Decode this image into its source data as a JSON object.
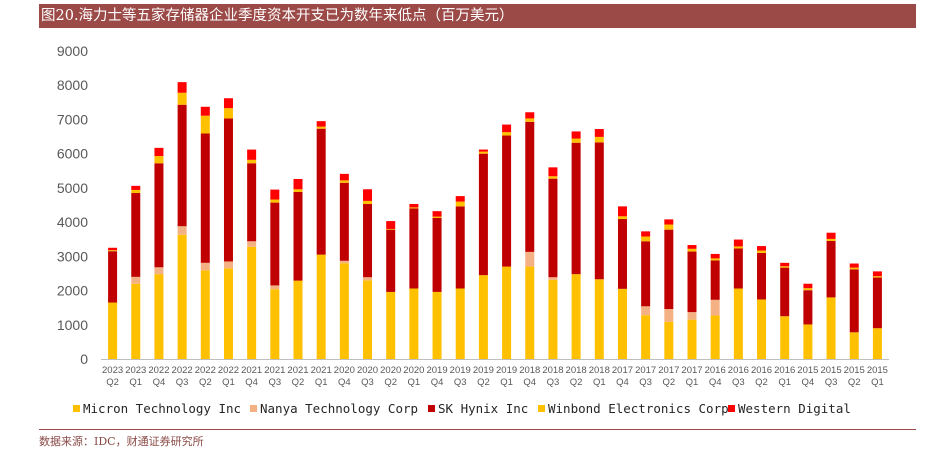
{
  "page": {
    "title": "图20.海力士等五家存储器企业季度资本开支已为数年来低点（百万美元）",
    "source": "数据来源：IDC，财通证券研究所"
  },
  "chart_data": {
    "type": "bar",
    "stacked": true,
    "title": "图20.海力士等五家存储器企业季度资本开支已为数年来低点（百万美元）",
    "ylim": [
      0,
      9000
    ],
    "yticks": [
      0,
      1000,
      2000,
      3000,
      4000,
      5000,
      6000,
      7000,
      8000,
      9000
    ],
    "legend_position": "bottom",
    "grid": false,
    "categories": [
      {
        "year": "2023",
        "q": "Q2"
      },
      {
        "year": "2023",
        "q": "Q1"
      },
      {
        "year": "2022",
        "q": "Q4"
      },
      {
        "year": "2022",
        "q": "Q3"
      },
      {
        "year": "2022",
        "q": "Q2"
      },
      {
        "year": "2022",
        "q": "Q1"
      },
      {
        "year": "2021",
        "q": "Q4"
      },
      {
        "year": "2021",
        "q": "Q3"
      },
      {
        "year": "2021",
        "q": "Q2"
      },
      {
        "year": "2021",
        "q": "Q1"
      },
      {
        "year": "2020",
        "q": "Q4"
      },
      {
        "year": "2020",
        "q": "Q3"
      },
      {
        "year": "2020",
        "q": "Q2"
      },
      {
        "year": "2020",
        "q": "Q1"
      },
      {
        "year": "2019",
        "q": "Q4"
      },
      {
        "year": "2019",
        "q": "Q3"
      },
      {
        "year": "2019",
        "q": "Q2"
      },
      {
        "year": "2019",
        "q": "Q1"
      },
      {
        "year": "2018",
        "q": "Q4"
      },
      {
        "year": "2018",
        "q": "Q3"
      },
      {
        "year": "2018",
        "q": "Q2"
      },
      {
        "year": "2018",
        "q": "Q1"
      },
      {
        "year": "2017",
        "q": "Q4"
      },
      {
        "year": "2017",
        "q": "Q3"
      },
      {
        "year": "2017",
        "q": "Q2"
      },
      {
        "year": "2017",
        "q": "Q1"
      },
      {
        "year": "2016",
        "q": "Q4"
      },
      {
        "year": "2016",
        "q": "Q3"
      },
      {
        "year": "2016",
        "q": "Q2"
      },
      {
        "year": "2016",
        "q": "Q1"
      },
      {
        "year": "2015",
        "q": "Q4"
      },
      {
        "year": "2015",
        "q": "Q3"
      },
      {
        "year": "2015",
        "q": "Q2"
      },
      {
        "year": "2015",
        "q": "Q1"
      }
    ],
    "series": [
      {
        "name": "Micron Technology Inc",
        "color": "#ffc000",
        "values": [
          1650,
          2200,
          2480,
          3630,
          2590,
          2650,
          3280,
          2040,
          2290,
          3050,
          2800,
          2300,
          1960,
          2060,
          1960,
          2060,
          2450,
          2700,
          2700,
          2310,
          2480,
          2330,
          2050,
          1280,
          1090,
          1150,
          1270,
          2060,
          1740,
          1250,
          1010,
          1800,
          780,
          900
        ]
      },
      {
        "name": "Nanya Technology Corp",
        "color": "#f4b183",
        "values": [
          0,
          200,
          200,
          250,
          220,
          200,
          160,
          110,
          0,
          0,
          70,
          90,
          0,
          0,
          0,
          0,
          0,
          0,
          430,
          80,
          0,
          0,
          0,
          260,
          370,
          220,
          460,
          0,
          0,
          0,
          0,
          0,
          0,
          0
        ]
      },
      {
        "name": "SK Hynix Inc",
        "color": "#c00000",
        "values": [
          1500,
          2450,
          3040,
          3550,
          3780,
          4180,
          2280,
          2420,
          2590,
          3680,
          2280,
          2140,
          1820,
          2340,
          2160,
          2400,
          3550,
          3830,
          3800,
          2880,
          3840,
          4000,
          2040,
          1900,
          2320,
          1770,
          1150,
          1170,
          1360,
          1420,
          1000,
          1650,
          1840,
          1480
        ]
      },
      {
        "name": "Winbond Electronics Corp",
        "color": "#ffc000",
        "values": [
          30,
          90,
          210,
          350,
          520,
          300,
          100,
          90,
          80,
          60,
          70,
          90,
          20,
          30,
          40,
          140,
          60,
          100,
          100,
          70,
          120,
          160,
          80,
          140,
          150,
          80,
          60,
          60,
          70,
          40,
          60,
          60,
          50,
          40
        ]
      },
      {
        "name": "Western Digital",
        "color": "#ff0000",
        "values": [
          70,
          120,
          240,
          310,
          260,
          290,
          300,
          290,
          300,
          160,
          190,
          340,
          230,
          100,
          160,
          160,
          60,
          220,
          180,
          260,
          210,
          230,
          290,
          150,
          150,
          110,
          130,
          200,
          130,
          100,
          130,
          180,
          120,
          140
        ]
      }
    ]
  }
}
